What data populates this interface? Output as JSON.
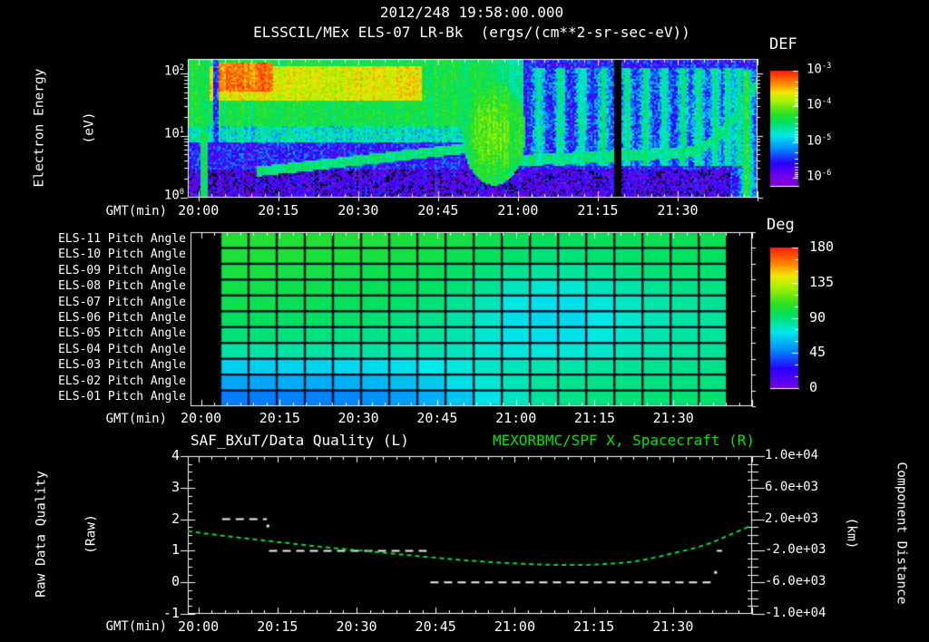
{
  "title_line1": "2012/248 19:58:00.000",
  "title_line2": "ELSSCIL/MEx ELS-07 LR-Bk  (ergs/(cm**2-sr-sec-eV))",
  "time_axis": {
    "label": "GMT(min)",
    "start_label": "19:58",
    "duration_minutes": 107,
    "tick_labels": [
      "20:00",
      "20:15",
      "20:30",
      "20:45",
      "21:00",
      "21:15",
      "21:30"
    ],
    "tick_minutes": [
      2,
      17,
      32,
      47,
      62,
      77,
      92
    ],
    "minor_tick_minutes": 2.5
  },
  "colors": {
    "background": "#000000",
    "text": "#ffffff",
    "accent_green": "#00e400",
    "curve_green": "#00dd33",
    "grid_gap": "#001022",
    "colormap_stops": [
      [
        0.0,
        "#7A00E8"
      ],
      [
        0.14,
        "#2800FF"
      ],
      [
        0.28,
        "#0090FF"
      ],
      [
        0.4,
        "#00E8E8"
      ],
      [
        0.52,
        "#00E060"
      ],
      [
        0.6,
        "#2CE022"
      ],
      [
        0.72,
        "#AAF000"
      ],
      [
        0.8,
        "#F0E800"
      ],
      [
        0.88,
        "#FF8C00"
      ],
      [
        1.0,
        "#FF2000"
      ]
    ]
  },
  "chart_data": [
    {
      "type": "heatmap",
      "name": "electron-energy-spectrogram",
      "ylabel_line1": "Electron Energy",
      "ylabel_line2": "(eV)",
      "y_tick_exponents": [
        2,
        1,
        0
      ],
      "y_log_range": [
        0,
        2.235
      ],
      "colorbar": {
        "label": "DEF",
        "tick_exponents": [
          -3,
          -4,
          -5,
          -6
        ],
        "min_exp": -6,
        "max_exp": -3
      },
      "features": {
        "base": {
          "log10_flux": -5.55,
          "noise": 0.45
        },
        "low_floor": {
          "max_log10_energy": 0.45,
          "log10_flux": -5.85
        },
        "main_band": {
          "t_end": 63,
          "min_log10_energy": 1.15,
          "log10_flux": -4.35
        },
        "yellow_ridge": {
          "t": [
            4,
            44
          ],
          "log10_energy": [
            1.55,
            2.12
          ],
          "log10_flux": -3.75
        },
        "hot_spot": {
          "t": [
            5,
            16
          ],
          "log10_energy": [
            1.7,
            2.18
          ],
          "log10_flux": -3.3
        },
        "mid_band": {
          "t_end": 52,
          "log10_energy": [
            0.9,
            1.32
          ],
          "log10_flux": -4.75
        },
        "rising_line": {
          "t": [
            13,
            53
          ],
          "start_log10_energy": 0.42,
          "slope": 0.0095,
          "half_width": 0.08,
          "log10_flux": -4.5
        },
        "blob": {
          "t_center": 57.5,
          "e_center": 1.05,
          "t_radius": 6,
          "e_radius": 0.85,
          "log10_flux": -4.05
        },
        "right_arc": {
          "t_start": 62,
          "base_e": 0.6,
          "slope": 0.004,
          "curl_t": 93,
          "curl_coef": 0.0055,
          "half_width": 0.09,
          "log10_flux": -4.55
        },
        "left_bright_stripe": {
          "t": [
            2.5,
            3.7
          ],
          "max_log10_energy": 1.5,
          "log10_flux": -4.35
        },
        "dark_stripe": {
          "t": [
            4.7,
            5.9
          ],
          "flux_cap": -5.5
        },
        "black_gap": {
          "t": [
            80.0,
            81.3
          ]
        },
        "streaks": {
          "t_list": [
            66,
            70,
            74,
            78,
            82.5,
            86,
            89.5,
            93,
            96,
            99,
            101.5,
            103.5
          ],
          "amplitude": 1.0,
          "log10_energy": [
            0.5,
            2.1
          ]
        },
        "green_streak": {
          "t": 105,
          "amplitude": 1.35
        }
      }
    },
    {
      "type": "heatmap",
      "name": "pitch-angle-panel",
      "row_labels": [
        "ELS-11 Pitch Angle",
        "ELS-10 Pitch Angle",
        "ELS-09 Pitch Angle",
        "ELS-08 Pitch Angle",
        "ELS-07 Pitch Angle",
        "ELS-06 Pitch Angle",
        "ELS-05 Pitch Angle",
        "ELS-04 Pitch Angle",
        "ELS-03 Pitch Angle",
        "ELS-02 Pitch Angle",
        "ELS-01 Pitch Angle"
      ],
      "colorbar": {
        "label": "Deg",
        "ticks": [
          "180",
          "135",
          "90",
          "45",
          "0"
        ],
        "min": 0,
        "max": 180
      },
      "data_start_min": 5.7,
      "data_end_min": 102.2,
      "values_deg": [
        [
          104,
          104,
          104,
          104,
          103,
          103,
          102,
          101,
          100,
          98,
          96,
          95,
          95,
          96,
          96,
          97,
          97,
          97
        ],
        [
          103,
          103,
          103,
          102,
          102,
          101,
          100,
          99,
          97,
          95,
          92,
          90,
          90,
          91,
          92,
          93,
          94,
          94
        ],
        [
          101,
          101,
          100,
          100,
          99,
          98,
          97,
          96,
          93,
          90,
          86,
          84,
          84,
          86,
          88,
          90,
          91,
          91
        ],
        [
          99,
          99,
          98,
          98,
          97,
          96,
          95,
          93,
          90,
          85,
          79,
          76,
          76,
          79,
          82,
          85,
          87,
          88
        ],
        [
          97,
          97,
          96,
          96,
          95,
          94,
          92,
          90,
          86,
          80,
          73,
          70,
          70,
          74,
          78,
          82,
          84,
          85
        ],
        [
          94,
          94,
          93,
          93,
          92,
          91,
          89,
          87,
          83,
          77,
          70,
          68,
          68,
          72,
          76,
          80,
          83,
          84
        ],
        [
          90,
          90,
          89,
          89,
          88,
          87,
          86,
          84,
          81,
          76,
          71,
          70,
          70,
          73,
          77,
          81,
          83,
          84
        ],
        [
          83,
          83,
          83,
          83,
          83,
          83,
          82,
          81,
          79,
          76,
          74,
          74,
          75,
          77,
          80,
          82,
          84,
          85
        ],
        [
          66,
          66,
          67,
          67,
          68,
          69,
          70,
          72,
          74,
          77,
          79,
          81,
          82,
          84,
          85,
          86,
          87,
          87
        ],
        [
          56,
          56,
          57,
          57,
          58,
          60,
          62,
          65,
          70,
          75,
          80,
          84,
          86,
          87,
          88,
          89,
          89,
          89
        ],
        [
          47,
          47,
          48,
          48,
          49,
          51,
          54,
          58,
          64,
          71,
          78,
          84,
          87,
          89,
          90,
          90,
          91,
          91
        ]
      ]
    },
    {
      "type": "line",
      "name": "quality-and-distance-panel",
      "title_left": "SAF_BXuT/Data Quality (L)",
      "title_right": "MEXORBMC/SPF X, Spacecraft (R)",
      "ylabel_left_line1": "Raw Data Quality",
      "ylabel_left_line2": "(Raw)",
      "ylabel_right_line1": "Component Distance",
      "ylabel_right_line2": "(km)",
      "left_ticks": [
        "4",
        "3",
        "2",
        "1",
        "0",
        "-1"
      ],
      "left_range": [
        -1,
        4
      ],
      "right_ticks": [
        "1.0e+04",
        "6.0e+03",
        "2.0e+03",
        "-2.0e+03",
        "-6.0e+03",
        "-1.0e+04"
      ],
      "right_range": [
        -10000,
        10000
      ],
      "quality_segments": [
        {
          "level": 2,
          "t": [
            6.5,
            15.0
          ]
        },
        {
          "level": 1,
          "t": [
            15.4,
            45.3
          ]
        },
        {
          "level": 0,
          "t": [
            46.0,
            99.8
          ]
        },
        {
          "level": 1,
          "t": [
            100.3,
            101.3
          ]
        }
      ],
      "quality_dots": [
        {
          "t": 15.1,
          "value": 1.8
        },
        {
          "t": 100.0,
          "value": 0.33
        }
      ],
      "spacecraft_x": {
        "t_minutes": [
          0,
          8,
          17,
          25,
          32,
          40,
          47,
          54,
          62,
          68,
          73,
          78,
          85,
          92,
          98,
          103,
          107
        ],
        "km": [
          480,
          -200,
          -880,
          -1480,
          -1920,
          -2440,
          -2880,
          -3280,
          -3600,
          -3760,
          -3800,
          -3720,
          -3320,
          -2320,
          -1280,
          80,
          1240
        ]
      }
    }
  ]
}
